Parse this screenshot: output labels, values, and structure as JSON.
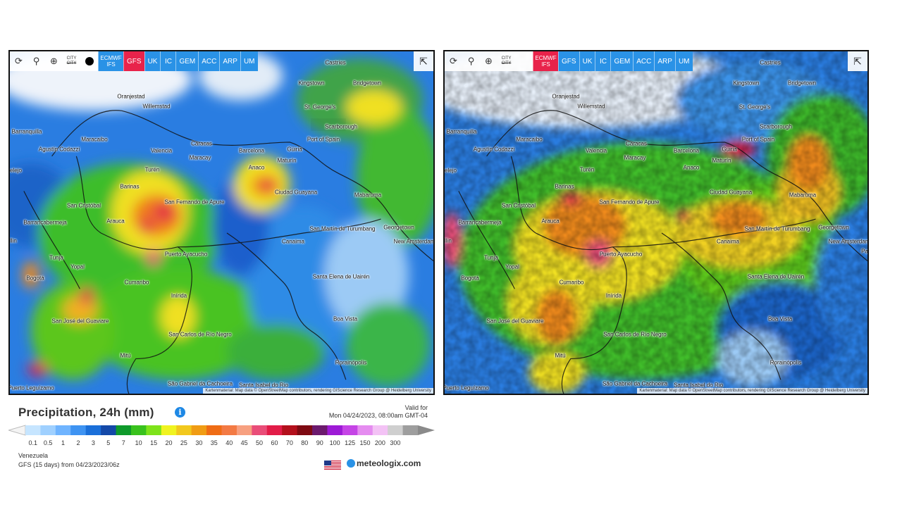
{
  "toolbar": {
    "city_top": "CITY",
    "city_bottom": "CITY",
    "models": [
      "ECMWF IFS",
      "GFS",
      "UK",
      "IC",
      "GEM",
      "ACC",
      "ARP",
      "UM"
    ]
  },
  "panels": [
    {
      "id": "left",
      "active_model": "GFS"
    },
    {
      "id": "right",
      "active_model": "ECMWF IFS"
    }
  ],
  "cities": {
    "castries": "Castries",
    "kingstown": "Kingstown",
    "bridgetown": "Bridgetown",
    "oranjestad": "Oranjestad",
    "willemstad": "Willemstad",
    "st_georges": "St. George's",
    "scarborough": "Scarborough",
    "barranquilla": "Barranquilla",
    "maracaibo": "Maracaibo",
    "caracas": "Caracas",
    "port_of_spain": "Port of Spain",
    "agustin": "Agustín Codazzi",
    "valencia": "Valencia",
    "barcelona": "Barcelona",
    "guiria": "Güiria",
    "maracay": "Maracay",
    "maturin": "Maturín",
    "anaco": "Anaco",
    "elejo": "elejo",
    "turen": "Turén",
    "barinas": "Barinas",
    "ciudad_guayana": "Ciudad Guayana",
    "mabaruma": "Mabaruma",
    "san_fernando": "San Fernando de Apure",
    "san_cristobal": "San Cristóbal",
    "barrancabermeja": "Barrancabermeja",
    "arauca": "Arauca",
    "san_martin": "San Martín de Turumbang",
    "georgetown": "Georgetown",
    "new_amsterdam": "New Amsterdam",
    "canaima": "Canaima",
    "puerto_ayacucho": "Puerto Ayacucho",
    "tunja": "Tunja",
    "yopal": "Yopal",
    "bogota": "Bogotá",
    "cumaribo": "Cumaribo",
    "santa_elena": "Santa Elena de Uairén",
    "inirida": "Inírida",
    "san_jose": "San José del Guaviare",
    "boa_vista": "Boa Vista",
    "san_carlos": "San Carlos de Río Negro",
    "mitu": "Mitú",
    "roraimopolis": "Rorainópolis",
    "sao_gabriel": "São Gabriel da Cachoeira",
    "santa_isabel": "Santa Isabel do Rio",
    "puerto_leguizamo": "Puerto Leguízamo",
    "pa": "Pa",
    "lin": "llin"
  },
  "attribution": "Kartenmaterial: Map data © OpenStreetMap contributors, rendering GIScience Research Group @ Heidelberg University",
  "legend": {
    "title": "Precipitation, 24h (mm)",
    "valid_for_label": "Valid for",
    "valid_for_value": "Mon 04/24/2023, 08:00am GMT-04",
    "ticks": [
      "0.1",
      "0.5",
      "1",
      "2",
      "3",
      "5",
      "7",
      "10",
      "15",
      "20",
      "25",
      "30",
      "35",
      "40",
      "45",
      "50",
      "60",
      "70",
      "80",
      "90",
      "100",
      "125",
      "150",
      "200",
      "300"
    ],
    "colors": [
      "#c6e5ff",
      "#9fd0ff",
      "#6fb4ff",
      "#3e93f2",
      "#1a6fd9",
      "#1449a8",
      "#0f9a2b",
      "#39c21d",
      "#7ee31a",
      "#f0f320",
      "#f2c81d",
      "#f09c14",
      "#ef6c15",
      "#f37a44",
      "#f7a080",
      "#e94d78",
      "#e21c48",
      "#b3101c",
      "#7e0a12",
      "#6c1a6e",
      "#9d1ad6",
      "#c544e6",
      "#e58cf0",
      "#f3c2f5",
      "#cfcfcf",
      "#9e9e9e"
    ],
    "region": "Venezuela",
    "model_run": "GFS (15 days) from 04/23/2023/06z",
    "brand": "meteologix.com"
  }
}
